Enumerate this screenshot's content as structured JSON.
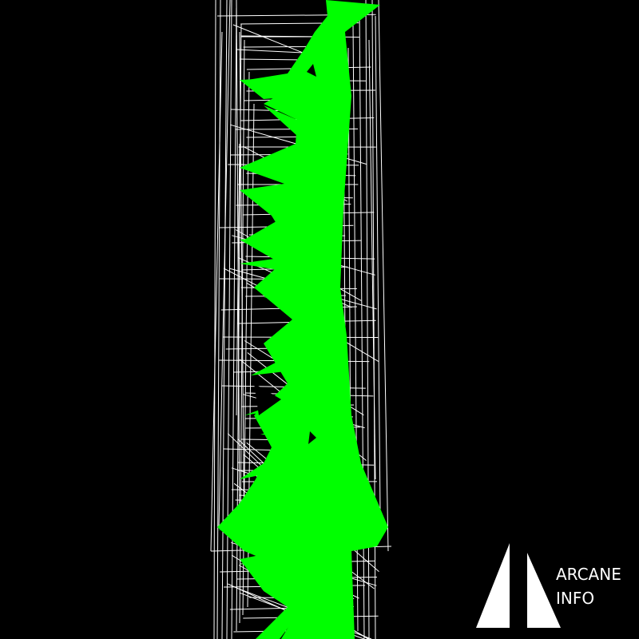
{
  "scene": {
    "background_color": "#000000",
    "wireframe_color": "#ffffff",
    "fill_color": "#00ff00"
  },
  "watermark": {
    "line1": "ARCANE",
    "line2": "INFO",
    "color": "#ffffff"
  }
}
